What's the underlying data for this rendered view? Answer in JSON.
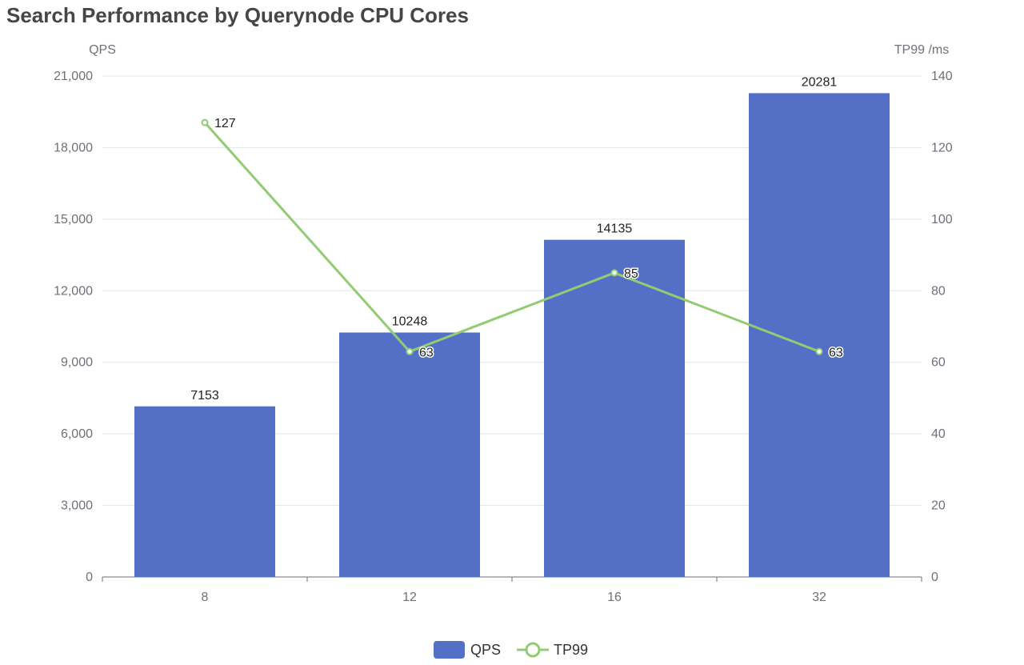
{
  "chart_data": {
    "type": "bar+line",
    "title": "Search Performance by Querynode CPU Cores",
    "categories": [
      "8",
      "12",
      "16",
      "32"
    ],
    "y_left": {
      "label": "QPS",
      "range": [
        0,
        21000
      ],
      "ticks": [
        "0",
        "3,000",
        "6,000",
        "9,000",
        "12,000",
        "15,000",
        "18,000",
        "21,000"
      ]
    },
    "y_right": {
      "label": "TP99 /ms",
      "range": [
        0,
        140
      ],
      "ticks": [
        "0",
        "20",
        "40",
        "60",
        "80",
        "100",
        "120",
        "140"
      ]
    },
    "grid": true,
    "legend_position": "bottom",
    "series": [
      {
        "name": "QPS",
        "type": "bar",
        "axis": "left",
        "color": "#5470c6",
        "values": [
          7153,
          10248,
          14135,
          20281
        ]
      },
      {
        "name": "TP99",
        "type": "line",
        "axis": "right",
        "color": "#91cc75",
        "values": [
          127,
          63,
          85,
          63
        ]
      }
    ]
  }
}
